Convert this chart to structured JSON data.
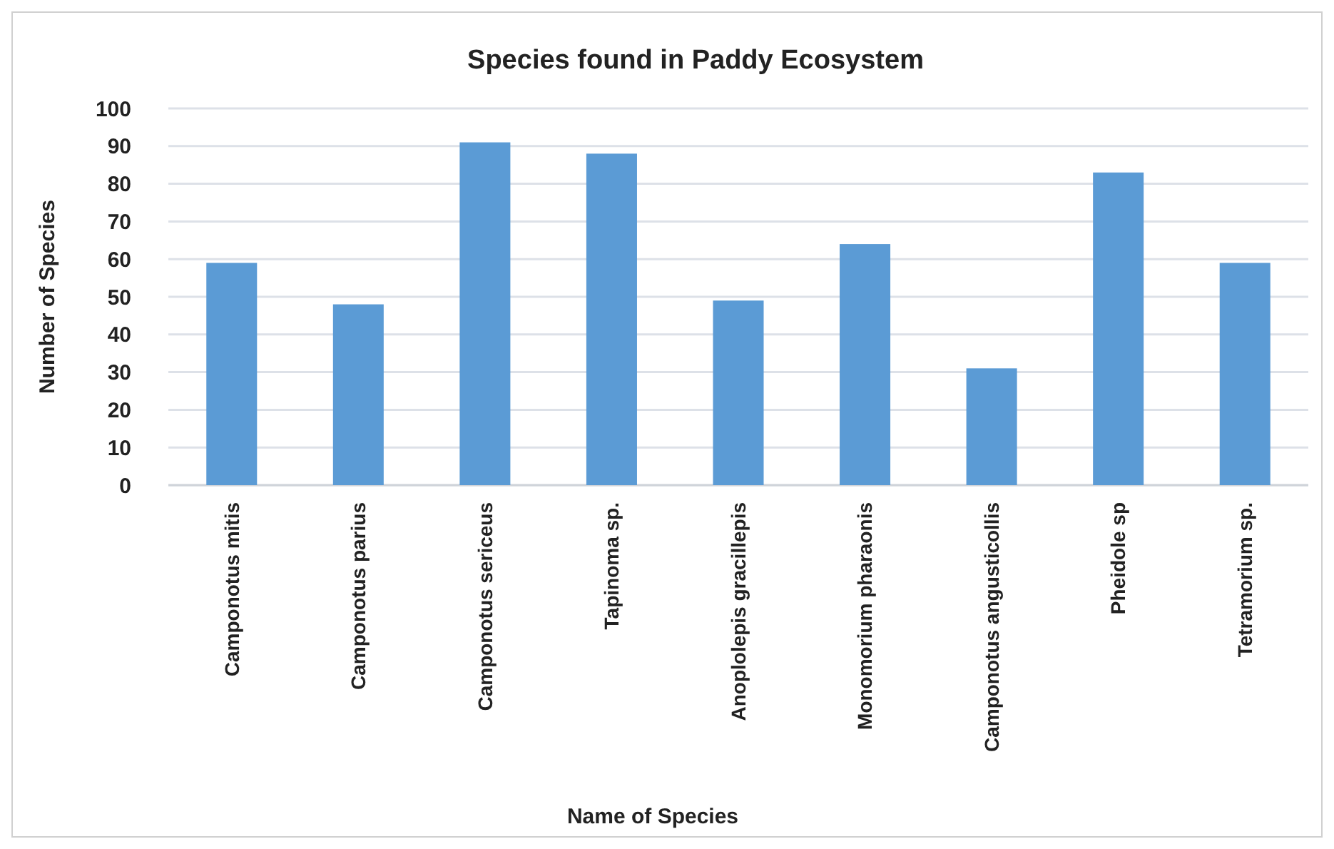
{
  "chart_data": {
    "type": "bar",
    "title": "Species found in Paddy Ecosystem",
    "xlabel": "Name of Species",
    "ylabel": "Number of Species",
    "categories": [
      "Camponotus mitis",
      "Camponotus parius",
      "Camponotus sericeus",
      "Tapinoma sp.",
      "Anoplolepis gracillepis",
      "Monomorium pharaonis",
      "Camponotus angusticollis",
      "Pheidole sp",
      "Tetramorium sp."
    ],
    "values": [
      59,
      48,
      91,
      88,
      49,
      64,
      31,
      83,
      59
    ],
    "color": "#5b9bd5",
    "ylim": [
      0,
      100
    ],
    "yticks": [
      0,
      10,
      20,
      30,
      40,
      50,
      60,
      70,
      80,
      90,
      100
    ],
    "grid": true
  }
}
